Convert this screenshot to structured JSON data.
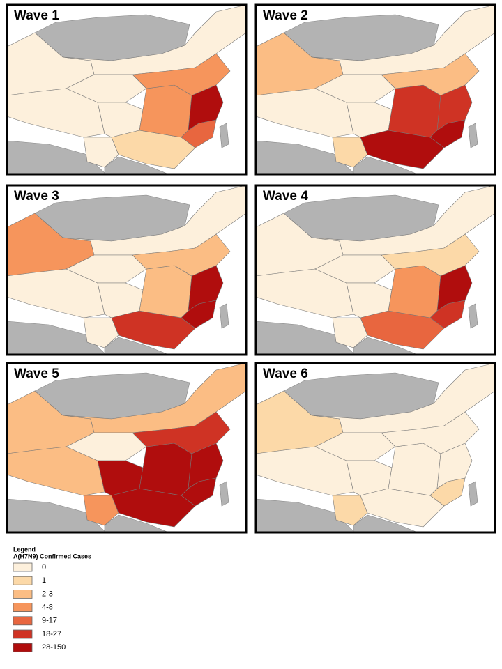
{
  "panels": [
    {
      "title": "Wave 1"
    },
    {
      "title": "Wave 2"
    },
    {
      "title": "Wave 3"
    },
    {
      "title": "Wave 4"
    },
    {
      "title": "Wave 5"
    },
    {
      "title": "Wave 6"
    }
  ],
  "legend": {
    "heading": "Legend",
    "title": "A(H7N9) Confirmed Cases",
    "entries": [
      {
        "label": "0",
        "color": "#fdf0dc"
      },
      {
        "label": "1",
        "color": "#fcd9a8"
      },
      {
        "label": "2-3",
        "color": "#fbbd84"
      },
      {
        "label": "4-8",
        "color": "#f6955c"
      },
      {
        "label": "9-17",
        "color": "#e8663f"
      },
      {
        "label": "18-27",
        "color": "#cf3324"
      },
      {
        "label": "28-150",
        "color": "#b00d0d"
      }
    ]
  }
}
